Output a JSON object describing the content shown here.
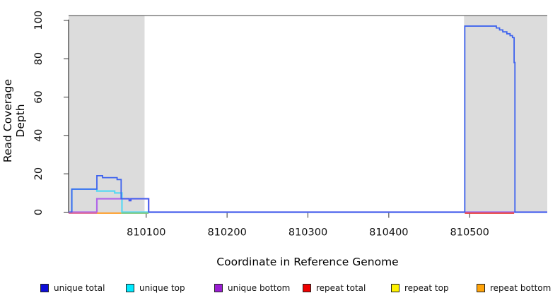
{
  "chart_data": {
    "type": "line",
    "title": "",
    "xlabel": "Coordinate in Reference Genome",
    "ylabel": "Read Coverage Depth",
    "xlim": [
      810004,
      810596
    ],
    "ylim": [
      0,
      102.5
    ],
    "x_ticks": [
      810100,
      810200,
      810300,
      810400,
      810500
    ],
    "y_ticks": [
      0,
      20,
      40,
      60,
      80,
      100
    ],
    "grid": false,
    "background_color": "#ffffff",
    "frame_top_color": "#666666",
    "axis_color": "#333333",
    "tick_label_color": "#111111",
    "shaded_region_color": "#dcdcdc",
    "shaded_regions": [
      {
        "name": "left-gray-block",
        "x0": 810004,
        "x1": 810098
      },
      {
        "name": "right-gray-block",
        "x0": 810493,
        "x1": 810596
      }
    ],
    "draw_order": [
      "unique top",
      "unique bottom",
      "unique total"
    ],
    "series": [
      {
        "name": "unique total",
        "color": "#3d62ee",
        "swatch": "#0d0dd8",
        "draw": true,
        "width": 1.8,
        "points": [
          [
            810004,
            0
          ],
          [
            810008,
            0
          ],
          [
            810008,
            12
          ],
          [
            810039,
            12
          ],
          [
            810039,
            19
          ],
          [
            810046,
            19
          ],
          [
            810046,
            18
          ],
          [
            810064,
            18
          ],
          [
            810064,
            17
          ],
          [
            810069,
            17
          ],
          [
            810069,
            7
          ],
          [
            810079,
            7
          ],
          [
            810079,
            6
          ],
          [
            810081,
            6
          ],
          [
            810081,
            7
          ],
          [
            810103,
            7
          ],
          [
            810103,
            0
          ],
          [
            810494,
            0
          ],
          [
            810494,
            97
          ],
          [
            810533,
            97
          ],
          [
            810533,
            96
          ],
          [
            810537,
            96
          ],
          [
            810537,
            95
          ],
          [
            810541,
            95
          ],
          [
            810541,
            94
          ],
          [
            810546,
            94
          ],
          [
            810546,
            93
          ],
          [
            810550,
            93
          ],
          [
            810550,
            92
          ],
          [
            810553,
            92
          ],
          [
            810553,
            91
          ],
          [
            810555,
            91
          ],
          [
            810555,
            78
          ],
          [
            810556,
            78
          ],
          [
            810556,
            0
          ],
          [
            810596,
            0
          ]
        ]
      },
      {
        "name": "unique top",
        "color": "#58d8f2",
        "swatch": "#00eaff",
        "draw": true,
        "width": 2.2,
        "points": [
          [
            810004,
            0
          ],
          [
            810008,
            0
          ],
          [
            810008,
            12
          ],
          [
            810039,
            12
          ],
          [
            810039,
            11
          ],
          [
            810061,
            11
          ],
          [
            810061,
            10
          ],
          [
            810070,
            10
          ],
          [
            810070,
            0
          ],
          [
            810596,
            0
          ]
        ]
      },
      {
        "name": "unique bottom",
        "color": "#b168e8",
        "swatch": "#9a1ed2",
        "draw": true,
        "width": 2.2,
        "points": [
          [
            810004,
            0
          ],
          [
            810039,
            0
          ],
          [
            810039,
            7
          ],
          [
            810079,
            7
          ],
          [
            810079,
            6
          ],
          [
            810081,
            6
          ],
          [
            810081,
            7
          ],
          [
            810103,
            7
          ],
          [
            810103,
            0
          ],
          [
            810596,
            0
          ]
        ]
      },
      {
        "name": "repeat total",
        "color": "#e8413c",
        "swatch": "#ee0000",
        "draw": false,
        "width": 1.8,
        "points": [
          [
            810004,
            0
          ],
          [
            810596,
            0
          ]
        ]
      },
      {
        "name": "repeat top",
        "color": "#fff200",
        "swatch": "#fff200",
        "draw": false,
        "width": 1.8,
        "points": [
          [
            810004,
            0
          ],
          [
            810596,
            0
          ]
        ]
      },
      {
        "name": "repeat bottom",
        "color": "#ff9d26",
        "swatch": "#ffa309",
        "draw": false,
        "width": 1.8,
        "points": [
          [
            810004,
            0
          ],
          [
            810596,
            0
          ]
        ]
      }
    ],
    "zero_line_segments": [
      {
        "x0": 810004,
        "x1": 810039,
        "color": "#df6a95"
      },
      {
        "x0": 810039,
        "x1": 810069,
        "color": "#ff9d26"
      },
      {
        "x0": 810069,
        "x1": 810103,
        "color": "#7ec87e"
      },
      {
        "x0": 810494,
        "x1": 810555,
        "color": "#e8413c"
      }
    ],
    "legend": {
      "position": "bottom",
      "items": [
        "unique total",
        "unique top",
        "unique bottom",
        "repeat total",
        "repeat top",
        "repeat bottom"
      ]
    }
  }
}
